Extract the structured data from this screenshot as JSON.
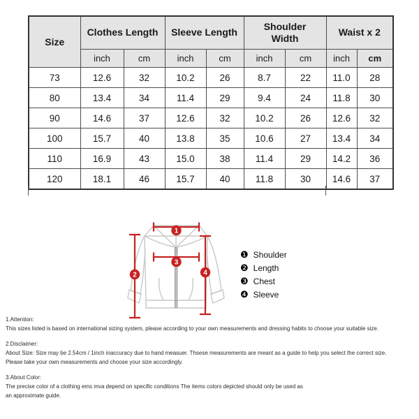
{
  "size_chart": {
    "corner_label": "Size",
    "groups": [
      {
        "label": "Clothes Length"
      },
      {
        "label": "Sleeve Length"
      },
      {
        "label": "Shoulder\nWidth"
      },
      {
        "label": "Waist x 2"
      }
    ],
    "units": [
      "inch",
      "cm",
      "inch",
      "cm",
      "inch",
      "cm",
      "inch",
      "cm"
    ],
    "rows": [
      [
        "73",
        "12.6",
        "32",
        "10.2",
        "26",
        "8.7",
        "22",
        "11.0",
        "28"
      ],
      [
        "80",
        "13.4",
        "34",
        "11.4",
        "29",
        "9.4",
        "24",
        "11.8",
        "30"
      ],
      [
        "90",
        "14.6",
        "37",
        "12.6",
        "32",
        "10.2",
        "26",
        "12.6",
        "32"
      ],
      [
        "100",
        "15.7",
        "40",
        "13.8",
        "35",
        "10.6",
        "27",
        "13.4",
        "34"
      ],
      [
        "110",
        "16.9",
        "43",
        "15.0",
        "38",
        "11.4",
        "29",
        "14.2",
        "36"
      ],
      [
        "120",
        "18.1",
        "46",
        "15.7",
        "40",
        "11.8",
        "30",
        "14.6",
        "37"
      ]
    ]
  },
  "diagram": {
    "markers": [
      "1",
      "2",
      "3",
      "4"
    ],
    "legend": [
      {
        "bullet": "❶",
        "label": "Shoulder"
      },
      {
        "bullet": "❷",
        "label": "Length"
      },
      {
        "bullet": "❸",
        "label": "Chest"
      },
      {
        "bullet": "❹",
        "label": "Sleeve"
      }
    ],
    "colors": {
      "accent": "#c62220",
      "outline": "#c8c8c8",
      "zipper": "#8f8f8f"
    }
  },
  "notes": [
    {
      "heading": "1.Attention:",
      "lines": [
        "This sizes listed is based on international sizing system, please according to your own measurements and dressing habits to choose your suitable size."
      ]
    },
    {
      "heading": "2.Disclaimer:",
      "lines": [
        "About Size: Size may be 2.54cm / 1inch inaccuracy due to hand measuer. Thsese measurements are meant as a guide to help you select the correct size.",
        "Please take your own measurements and choose your size accordingly."
      ]
    },
    {
      "heading": "3.About Color:",
      "lines": [
        "The precise color of a clothing ems mva depend on specific conditions The items colors depicted should only be used as",
        "an approximate guide."
      ]
    }
  ]
}
